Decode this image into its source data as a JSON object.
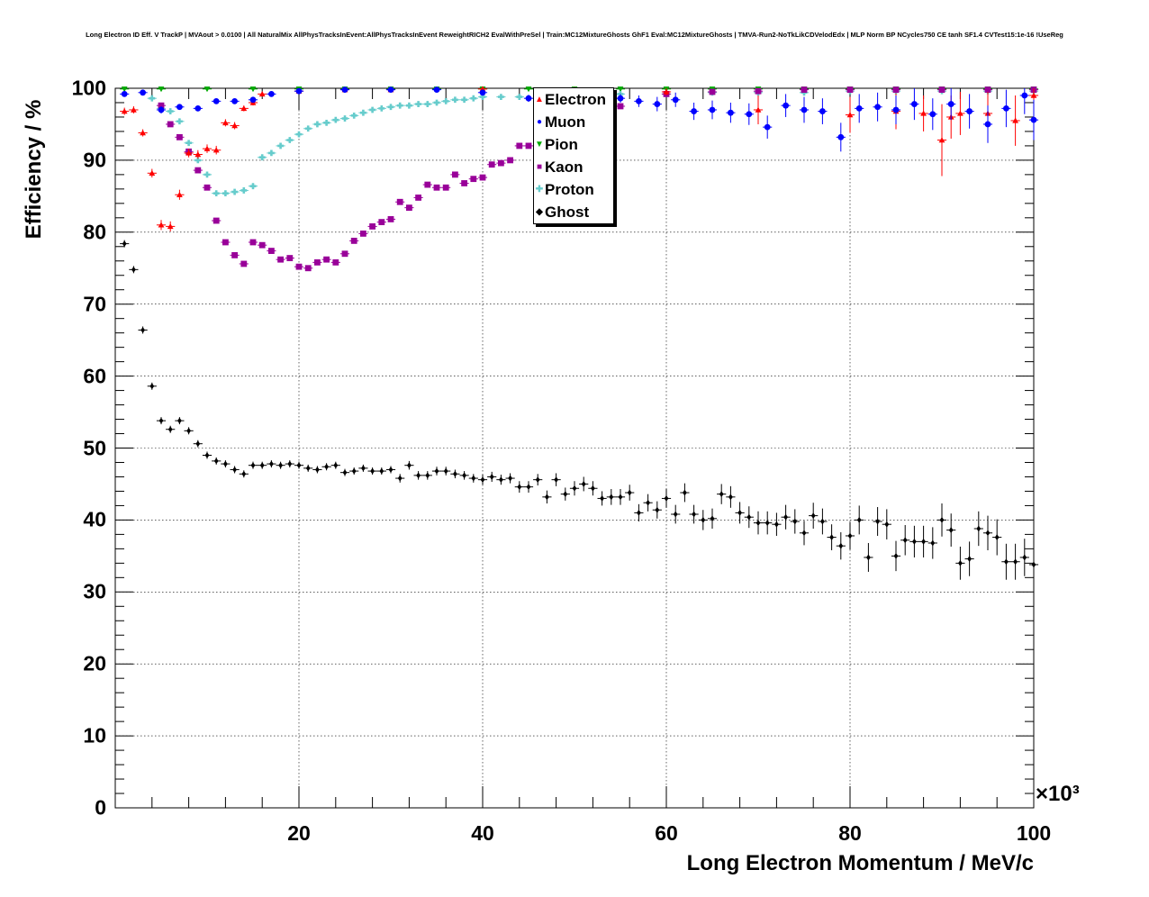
{
  "title": "Long Electron ID Eff. V TrackP | MVAout > 0.0100 | All NaturalMix AllPhysTracksInEvent:AllPhysTracksInEvent ReweightRICH2 EvalWithPreSel | Train:MC12MixtureGhosts GhF1 Eval:MC12MixtureGhosts | TMVA-Run2-NoTkLikCDVelodEdx | MLP Norm BP NCycles750 CE tanh SF1.4 CVTest15:1e-16 !UseReg",
  "chart_data": {
    "type": "scatter",
    "title": "Long Electron ID Eff. V TrackP | MVAout > 0.0100 | All NaturalMix AllPhysTracksInEvent:AllPhysTracksInEvent ReweightRICH2 EvalWithPreSel | Train:MC12MixtureGhosts GhF1 Eval:MC12MixtureGhosts | TMVA-Run2-NoTkLikCDVelodEdx | MLP Norm BP NCycles750 CE tanh SF1.4 CVTest15:1e-16 !UseReg",
    "xlabel": "Long Electron Momentum / MeV/c",
    "ylabel": "Efficiency / %",
    "x_exponent": "×10³",
    "xlim": [
      0,
      100
    ],
    "ylim": [
      0,
      100
    ],
    "x_ticks": [
      "20",
      "40",
      "60",
      "80",
      "100"
    ],
    "y_ticks": [
      "0",
      "10",
      "20",
      "30",
      "40",
      "50",
      "60",
      "70",
      "80",
      "90",
      "100"
    ],
    "grid": true,
    "legend_position": "top-center",
    "series": [
      {
        "name": "Electron",
        "color": "#ff0000",
        "marker": "triangle-up",
        "x": [
          1,
          2,
          3,
          4,
          5,
          6,
          7,
          8,
          9,
          10,
          11,
          12,
          13,
          14,
          15,
          16,
          20,
          25,
          30,
          40,
          50,
          60,
          70,
          80,
          85,
          88,
          90,
          91,
          92,
          95,
          98,
          100
        ],
        "y": [
          96.8,
          97.0,
          93.8,
          88.2,
          81.0,
          80.8,
          85.2,
          91.0,
          90.8,
          91.6,
          91.4,
          95.2,
          94.8,
          97.2,
          98.0,
          99.2,
          99.6,
          99.8,
          99.8,
          99.9,
          99.8,
          99.5,
          97.0,
          96.3,
          96.8,
          96.5,
          92.8,
          96.0,
          96.5,
          96.5,
          95.5,
          99.0
        ],
        "yerr": [
          0.5,
          0.5,
          0.5,
          0.6,
          0.7,
          0.7,
          0.7,
          0.6,
          0.6,
          0.6,
          0.6,
          0.5,
          0.5,
          0.4,
          0.4,
          0.3,
          0.2,
          0.2,
          0.2,
          0.2,
          0.3,
          0.5,
          2.0,
          2.5,
          2.5,
          2.5,
          5.0,
          3.0,
          3.0,
          3.0,
          3.5,
          1.5
        ]
      },
      {
        "name": "Muon",
        "color": "#0000ff",
        "marker": "circle",
        "x": [
          1,
          3,
          5,
          7,
          9,
          11,
          13,
          15,
          17,
          20,
          25,
          30,
          35,
          40,
          45,
          50,
          55,
          57,
          59,
          61,
          63,
          65,
          67,
          69,
          71,
          73,
          75,
          77,
          79,
          81,
          83,
          85,
          87,
          89,
          91,
          93,
          95,
          97,
          99,
          100
        ],
        "y": [
          99.2,
          99.4,
          97.0,
          97.4,
          97.2,
          98.2,
          98.2,
          98.4,
          99.2,
          99.6,
          99.8,
          99.8,
          99.8,
          99.4,
          98.6,
          98.4,
          98.6,
          98.2,
          97.8,
          98.4,
          96.8,
          97.0,
          96.6,
          96.4,
          94.6,
          97.6,
          97.0,
          96.8,
          93.2,
          97.2,
          97.4,
          97.0,
          97.8,
          96.4,
          97.8,
          96.8,
          95.0,
          97.2,
          99.0,
          95.6
        ],
        "yerr": [
          0.3,
          0.3,
          0.5,
          0.4,
          0.4,
          0.3,
          0.3,
          0.3,
          0.2,
          0.2,
          0.2,
          0.2,
          0.2,
          0.3,
          0.5,
          0.5,
          0.6,
          0.8,
          1.0,
          1.0,
          1.2,
          1.3,
          1.4,
          1.5,
          1.6,
          1.6,
          1.8,
          1.8,
          2.0,
          2.0,
          2.0,
          2.0,
          2.2,
          2.2,
          2.2,
          2.4,
          2.6,
          2.6,
          2.6,
          2.8
        ]
      },
      {
        "name": "Pion",
        "color": "#00aa00",
        "marker": "triangle-down",
        "x": [
          1,
          5,
          10,
          15,
          20,
          25,
          30,
          35,
          40,
          45,
          50,
          55,
          60,
          65,
          70,
          75,
          80,
          85,
          90,
          95,
          100
        ],
        "y": [
          99.9,
          99.9,
          99.9,
          99.9,
          99.9,
          99.9,
          99.9,
          99.9,
          99.9,
          99.9,
          99.9,
          99.9,
          99.9,
          99.9,
          99.9,
          99.9,
          99.9,
          99.9,
          99.9,
          99.9,
          99.9
        ],
        "yerr": [
          0.1,
          0.1,
          0.1,
          0.1,
          0.1,
          0.1,
          0.1,
          0.1,
          0.1,
          0.1,
          0.1,
          0.1,
          0.1,
          0.1,
          0.1,
          0.1,
          0.1,
          0.1,
          0.1,
          0.1,
          0.1
        ]
      },
      {
        "name": "Kaon",
        "color": "#990099",
        "marker": "square",
        "x": [
          5,
          6,
          7,
          8,
          9,
          10,
          11,
          12,
          13,
          14,
          15,
          16,
          17,
          18,
          19,
          20,
          21,
          22,
          23,
          24,
          25,
          26,
          27,
          28,
          29,
          30,
          31,
          32,
          33,
          34,
          35,
          36,
          37,
          38,
          39,
          40,
          41,
          42,
          43,
          44,
          45,
          46,
          47,
          48,
          50,
          55,
          60,
          65,
          70,
          75,
          80,
          85,
          90,
          95,
          100
        ],
        "y": [
          97.6,
          95.0,
          93.2,
          91.2,
          88.6,
          86.2,
          81.6,
          78.6,
          76.8,
          75.6,
          78.6,
          78.2,
          77.4,
          76.2,
          76.4,
          75.2,
          75.0,
          75.8,
          76.2,
          75.8,
          77.0,
          78.8,
          79.8,
          80.8,
          81.4,
          81.8,
          84.2,
          83.4,
          84.8,
          86.6,
          86.2,
          86.2,
          88.0,
          86.8,
          87.4,
          87.6,
          89.4,
          89.6,
          90.0,
          92.0,
          92.0,
          92.6,
          93.0,
          94.0,
          95.5,
          97.5,
          99.2,
          99.5,
          99.6,
          99.8,
          99.8,
          99.8,
          99.8,
          99.8,
          99.8
        ],
        "yerr": [
          0.3,
          0.3,
          0.3,
          0.3,
          0.3,
          0.3,
          0.3,
          0.3,
          0.3,
          0.3,
          0.3,
          0.3,
          0.3,
          0.3,
          0.3,
          0.3,
          0.3,
          0.3,
          0.3,
          0.3,
          0.3,
          0.3,
          0.3,
          0.3,
          0.3,
          0.3,
          0.3,
          0.3,
          0.3,
          0.3,
          0.3,
          0.3,
          0.3,
          0.3,
          0.3,
          0.3,
          0.3,
          0.3,
          0.3,
          0.3,
          0.3,
          0.3,
          0.3,
          0.3,
          0.3,
          0.3,
          0.3,
          0.3,
          0.3,
          0.3,
          0.3,
          0.3,
          0.3,
          0.3,
          0.3
        ]
      },
      {
        "name": "Proton",
        "color": "#66cccc",
        "marker": "cross",
        "x": [
          4,
          5,
          6,
          7,
          8,
          9,
          10,
          11,
          12,
          13,
          14,
          15,
          16,
          17,
          18,
          19,
          20,
          21,
          22,
          23,
          24,
          25,
          26,
          27,
          28,
          29,
          30,
          31,
          32,
          33,
          34,
          35,
          36,
          37,
          38,
          39,
          40,
          42,
          44,
          46,
          48,
          50,
          55,
          60,
          65,
          70,
          75,
          80,
          85,
          90,
          95,
          100
        ],
        "y": [
          98.6,
          97.2,
          96.8,
          95.4,
          92.4,
          90.0,
          88.0,
          85.4,
          85.4,
          85.6,
          85.8,
          86.4,
          90.4,
          91.0,
          92.0,
          92.8,
          93.6,
          94.4,
          95.0,
          95.2,
          95.6,
          95.8,
          96.2,
          96.6,
          97.0,
          97.2,
          97.4,
          97.6,
          97.6,
          97.8,
          97.8,
          98.0,
          98.2,
          98.4,
          98.4,
          98.6,
          98.8,
          98.8,
          98.8,
          99.0,
          99.0,
          99.2,
          99.2,
          99.2,
          99.4,
          99.4,
          99.4,
          99.6,
          99.6,
          99.6,
          99.6,
          99.6
        ],
        "yerr": [
          0.3,
          0.3,
          0.3,
          0.3,
          0.3,
          0.3,
          0.3,
          0.3,
          0.3,
          0.3,
          0.3,
          0.3,
          0.3,
          0.3,
          0.3,
          0.3,
          0.3,
          0.3,
          0.3,
          0.3,
          0.3,
          0.3,
          0.3,
          0.3,
          0.3,
          0.3,
          0.3,
          0.3,
          0.3,
          0.3,
          0.3,
          0.3,
          0.3,
          0.3,
          0.3,
          0.3,
          0.3,
          0.3,
          0.3,
          0.3,
          0.3,
          0.3,
          0.3,
          0.3,
          0.3,
          0.3,
          0.3,
          0.3,
          0.3,
          0.3,
          0.3,
          0.3
        ]
      },
      {
        "name": "Ghost",
        "color": "#000000",
        "marker": "diamond",
        "x": [
          1,
          2,
          3,
          4,
          5,
          6,
          7,
          8,
          9,
          10,
          11,
          12,
          13,
          14,
          15,
          16,
          17,
          18,
          19,
          20,
          21,
          22,
          23,
          24,
          25,
          26,
          27,
          28,
          29,
          30,
          31,
          32,
          33,
          34,
          35,
          36,
          37,
          38,
          39,
          40,
          41,
          42,
          43,
          44,
          45,
          46,
          47,
          48,
          49,
          50,
          51,
          52,
          53,
          54,
          55,
          56,
          57,
          58,
          59,
          60,
          61,
          62,
          63,
          64,
          65,
          66,
          67,
          68,
          69,
          70,
          71,
          72,
          73,
          74,
          75,
          76,
          77,
          78,
          79,
          80,
          81,
          82,
          83,
          84,
          85,
          86,
          87,
          88,
          89,
          90,
          91,
          92,
          93,
          94,
          95,
          96,
          97,
          98,
          99,
          100
        ],
        "y": [
          78.4,
          74.8,
          66.4,
          58.6,
          53.8,
          52.6,
          53.8,
          52.4,
          50.6,
          49.0,
          48.2,
          47.8,
          47.0,
          46.4,
          47.6,
          47.6,
          47.8,
          47.6,
          47.8,
          47.6,
          47.2,
          47.0,
          47.4,
          47.6,
          46.6,
          46.8,
          47.2,
          46.8,
          46.8,
          47.0,
          45.8,
          47.6,
          46.2,
          46.2,
          46.8,
          46.8,
          46.4,
          46.2,
          45.8,
          45.6,
          46.0,
          45.6,
          45.8,
          44.6,
          44.6,
          45.6,
          43.2,
          45.6,
          43.6,
          44.4,
          45.0,
          44.4,
          43.0,
          43.2,
          43.2,
          43.8,
          41.0,
          42.4,
          41.4,
          43.0,
          40.8,
          43.8,
          40.8,
          40.0,
          40.2,
          43.6,
          43.2,
          41.0,
          40.4,
          39.6,
          39.6,
          39.4,
          40.4,
          39.8,
          38.2,
          40.6,
          39.8,
          37.6,
          36.4,
          37.8,
          40.0,
          34.8,
          39.8,
          39.4,
          35.0,
          37.2,
          37.0,
          37.0,
          36.8,
          40.0,
          38.6,
          34.0,
          34.6,
          38.8,
          38.2,
          37.6,
          34.2,
          34.2,
          34.8,
          33.8
        ],
        "yerr": [
          0.5,
          0.5,
          0.5,
          0.5,
          0.5,
          0.5,
          0.5,
          0.5,
          0.5,
          0.5,
          0.5,
          0.5,
          0.5,
          0.5,
          0.5,
          0.5,
          0.5,
          0.5,
          0.5,
          0.5,
          0.5,
          0.5,
          0.5,
          0.5,
          0.5,
          0.5,
          0.5,
          0.5,
          0.5,
          0.5,
          0.6,
          0.6,
          0.6,
          0.6,
          0.6,
          0.6,
          0.6,
          0.6,
          0.6,
          0.7,
          0.7,
          0.7,
          0.7,
          0.8,
          0.8,
          0.8,
          0.9,
          0.9,
          0.9,
          1.0,
          1.0,
          1.0,
          1.0,
          1.1,
          1.1,
          1.1,
          1.2,
          1.2,
          1.2,
          1.3,
          1.3,
          1.3,
          1.3,
          1.4,
          1.4,
          1.4,
          1.5,
          1.5,
          1.5,
          1.6,
          1.6,
          1.6,
          1.7,
          1.7,
          1.7,
          1.8,
          1.8,
          1.8,
          1.9,
          1.9,
          2.0,
          2.0,
          2.0,
          2.1,
          2.1,
          2.1,
          2.2,
          2.2,
          2.2,
          2.3,
          2.3,
          2.3,
          2.4,
          2.4,
          2.4,
          2.5,
          2.5,
          2.5,
          2.6,
          2.6
        ]
      }
    ]
  }
}
